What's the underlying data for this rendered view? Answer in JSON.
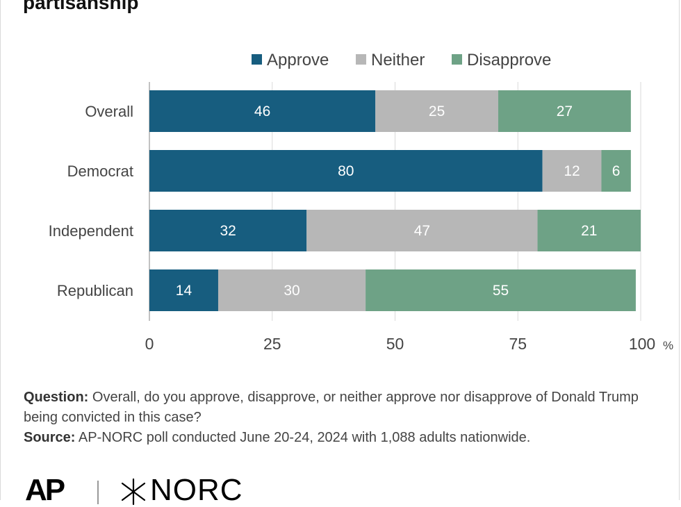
{
  "title": "partisanship",
  "chart_data": {
    "type": "bar",
    "orientation": "horizontal",
    "stacked": true,
    "categories": [
      "Overall",
      "Democrat",
      "Independent",
      "Republican"
    ],
    "series": [
      {
        "name": "Approve",
        "color": "#175d7f",
        "values": [
          46,
          80,
          32,
          14
        ]
      },
      {
        "name": "Neither",
        "color": "#b7b7b7",
        "values": [
          25,
          12,
          47,
          30
        ]
      },
      {
        "name": "Disapprove",
        "color": "#6ea286",
        "values": [
          27,
          6,
          21,
          55
        ]
      }
    ],
    "xlim": [
      0,
      100
    ],
    "x_ticks": [
      "0",
      "25",
      "50",
      "75",
      "100"
    ],
    "x_unit": "%",
    "grid": true,
    "legend_position": "top"
  },
  "notes": {
    "question_label": "Question:",
    "question_text": " Overall, do you approve, disapprove, or neither approve nor disapprove of Donald Trump being convicted in this case?",
    "source_label": "Source:",
    "source_text": " AP-NORC poll conducted June 20-24, 2024 with 1,088 adults nationwide."
  },
  "logos": {
    "ap": "AP",
    "norc": "NORC"
  }
}
